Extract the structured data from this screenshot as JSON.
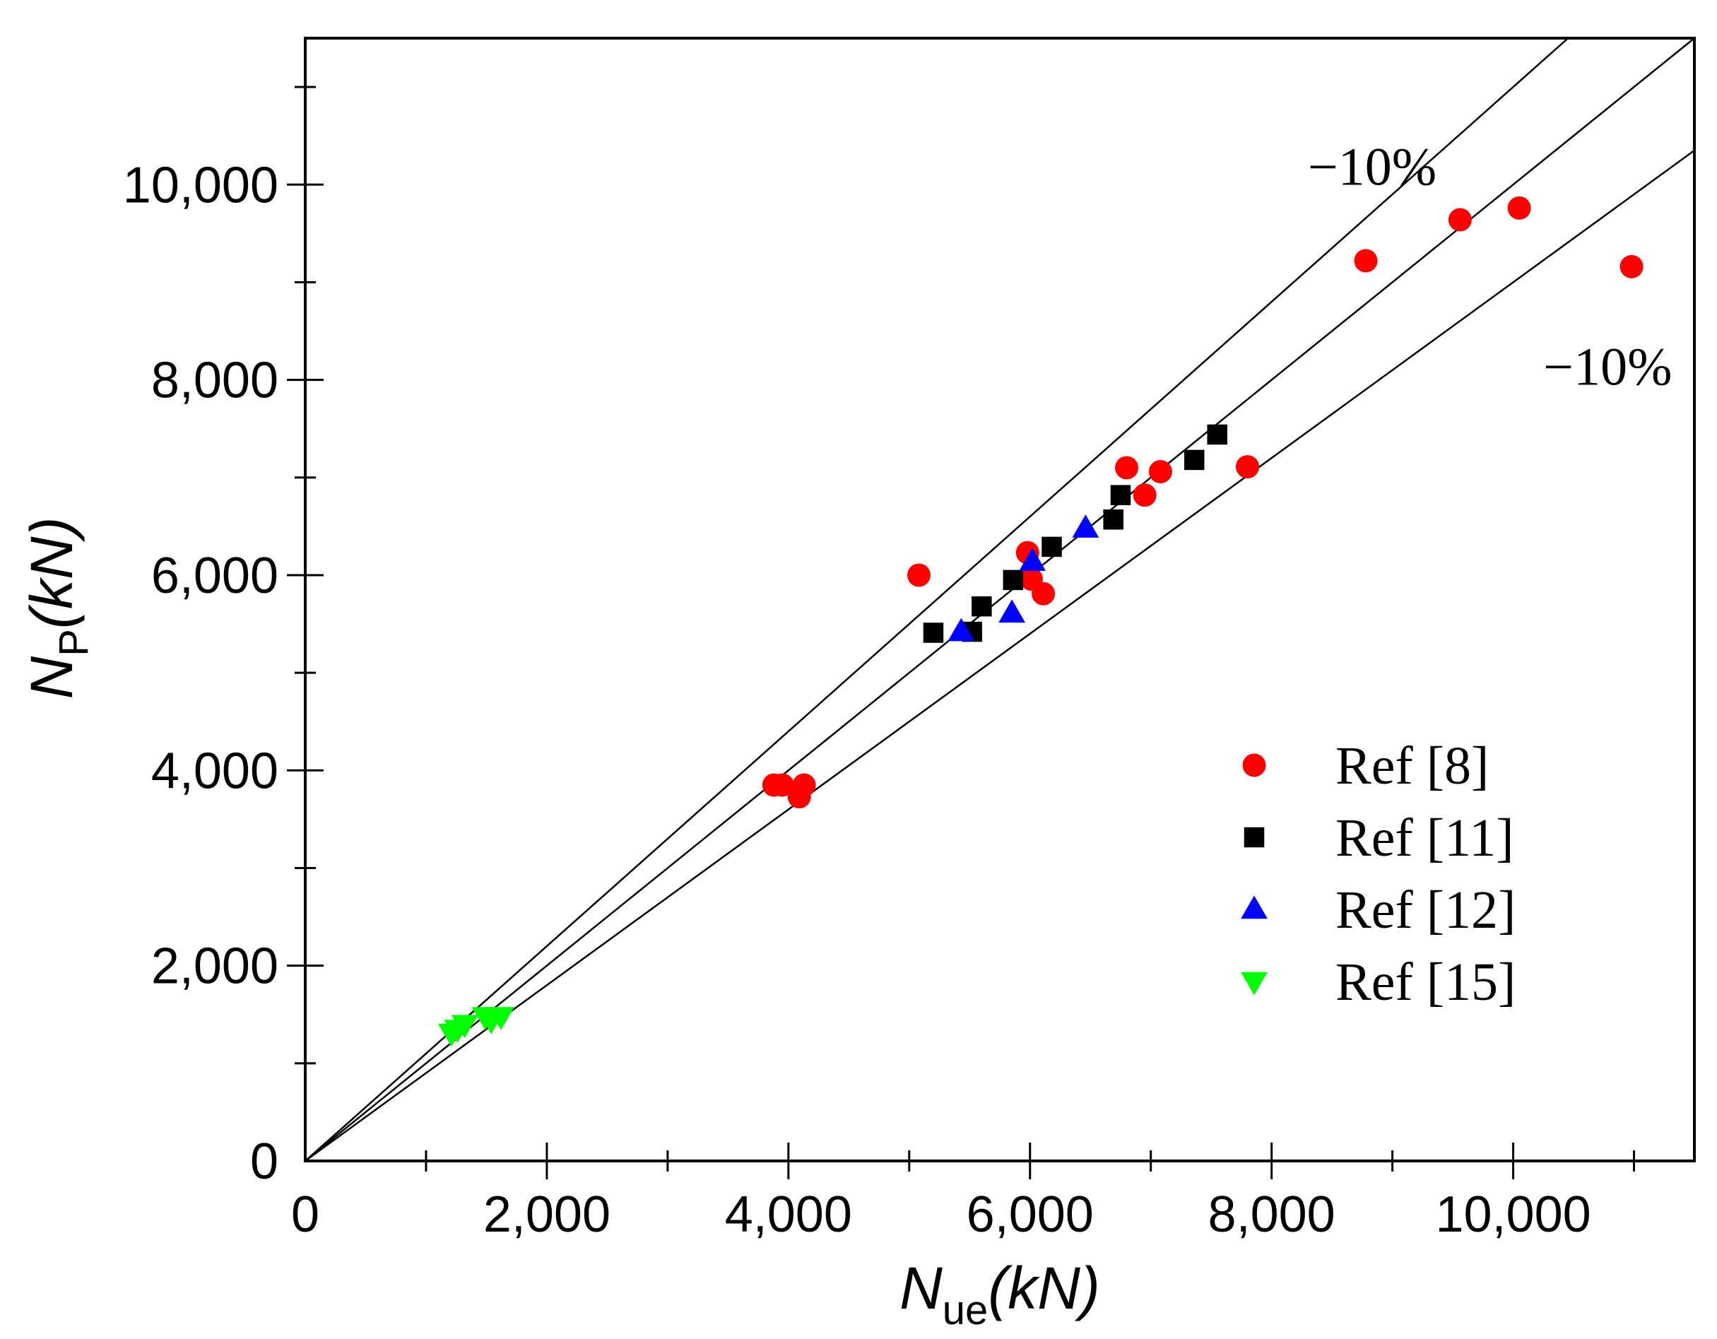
{
  "chart_data": {
    "type": "scatter",
    "title": "",
    "xlabel": {
      "main": "N",
      "sub": "ue",
      "unit": "(kN)"
    },
    "ylabel": {
      "main": "N",
      "sub": "P",
      "unit": "(kN)"
    },
    "xlim": [
      0,
      11500
    ],
    "ylim": [
      0,
      11500
    ],
    "xticks": [
      0,
      2000,
      4000,
      6000,
      8000,
      10000
    ],
    "xtick_labels": [
      "0",
      "2,000",
      "4,000",
      "6,000",
      "8,000",
      "10,000"
    ],
    "yticks": [
      0,
      2000,
      4000,
      6000,
      8000,
      10000
    ],
    "ytick_labels": [
      "0",
      "2,000",
      "4,000",
      "6,000",
      "8,000",
      "10,000"
    ],
    "grid": false,
    "legend_position": "bottom-right",
    "reference_lines": [
      {
        "name": "upper",
        "slope": 1.1
      },
      {
        "name": "equality",
        "slope": 1.0
      },
      {
        "name": "lower",
        "slope": 0.9
      }
    ],
    "annotations": [
      {
        "text": "−10%",
        "x": 8300,
        "y": 10000
      },
      {
        "text": "−10%",
        "x": 10250,
        "y": 7950
      }
    ],
    "series": [
      {
        "name": "Ref [8]",
        "marker": "circle",
        "color": "#ff0000",
        "points": [
          [
            3880,
            3850
          ],
          [
            3950,
            3850
          ],
          [
            4090,
            3730
          ],
          [
            4130,
            3850
          ],
          [
            5080,
            6000
          ],
          [
            5980,
            6230
          ],
          [
            6010,
            5960
          ],
          [
            6110,
            5810
          ],
          [
            6800,
            7100
          ],
          [
            6950,
            6820
          ],
          [
            7080,
            7060
          ],
          [
            7800,
            7110
          ],
          [
            8780,
            9220
          ],
          [
            9560,
            9640
          ],
          [
            10050,
            9760
          ],
          [
            10980,
            9160
          ]
        ]
      },
      {
        "name": "Ref [11]",
        "marker": "square",
        "color": "#000000",
        "points": [
          [
            5200,
            5410
          ],
          [
            5520,
            5420
          ],
          [
            5600,
            5680
          ],
          [
            5860,
            5950
          ],
          [
            6180,
            6290
          ],
          [
            6690,
            6570
          ],
          [
            6750,
            6820
          ],
          [
            7360,
            7180
          ],
          [
            7550,
            7440
          ]
        ]
      },
      {
        "name": "Ref [12]",
        "marker": "triangle-up",
        "color": "#0000ff",
        "points": [
          [
            5430,
            5420
          ],
          [
            5850,
            5610
          ],
          [
            6020,
            6140
          ],
          [
            6460,
            6480
          ]
        ]
      },
      {
        "name": "Ref [15]",
        "marker": "triangle-down",
        "color": "#00ff00",
        "points": [
          [
            1210,
            1310
          ],
          [
            1260,
            1350
          ],
          [
            1320,
            1400
          ],
          [
            1490,
            1480
          ],
          [
            1540,
            1440
          ],
          [
            1620,
            1480
          ]
        ]
      }
    ]
  }
}
